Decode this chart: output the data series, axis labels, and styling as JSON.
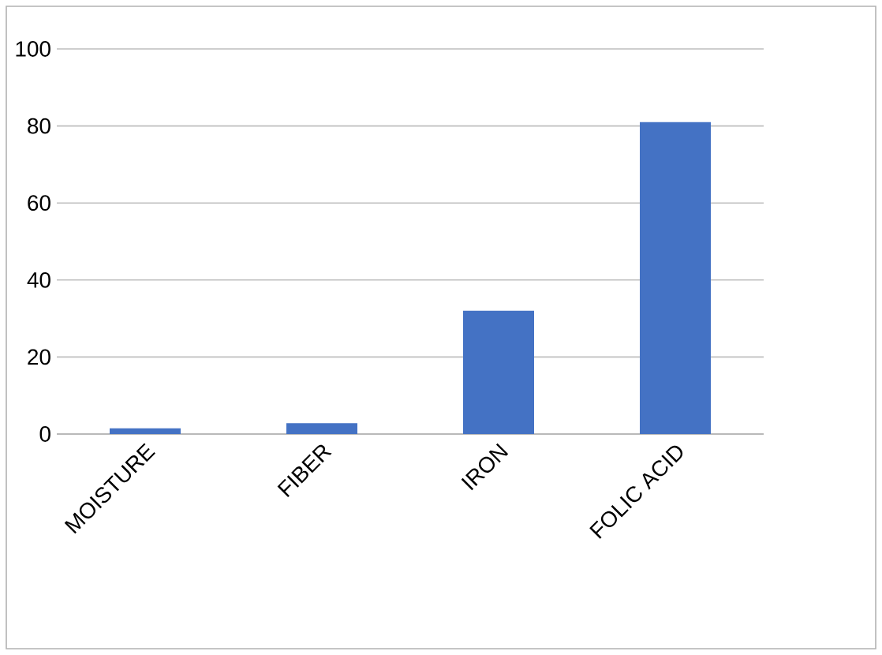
{
  "chart_data": {
    "type": "bar",
    "categories": [
      "MOISTURE",
      "FIBER",
      "IRON",
      "FOLIC ACID"
    ],
    "values": [
      1.5,
      2.8,
      32,
      81
    ],
    "color": "#4472c4",
    "ylim": [
      0,
      100
    ],
    "yticks": [
      0,
      20,
      40,
      60,
      80,
      100
    ],
    "grid": "y"
  }
}
